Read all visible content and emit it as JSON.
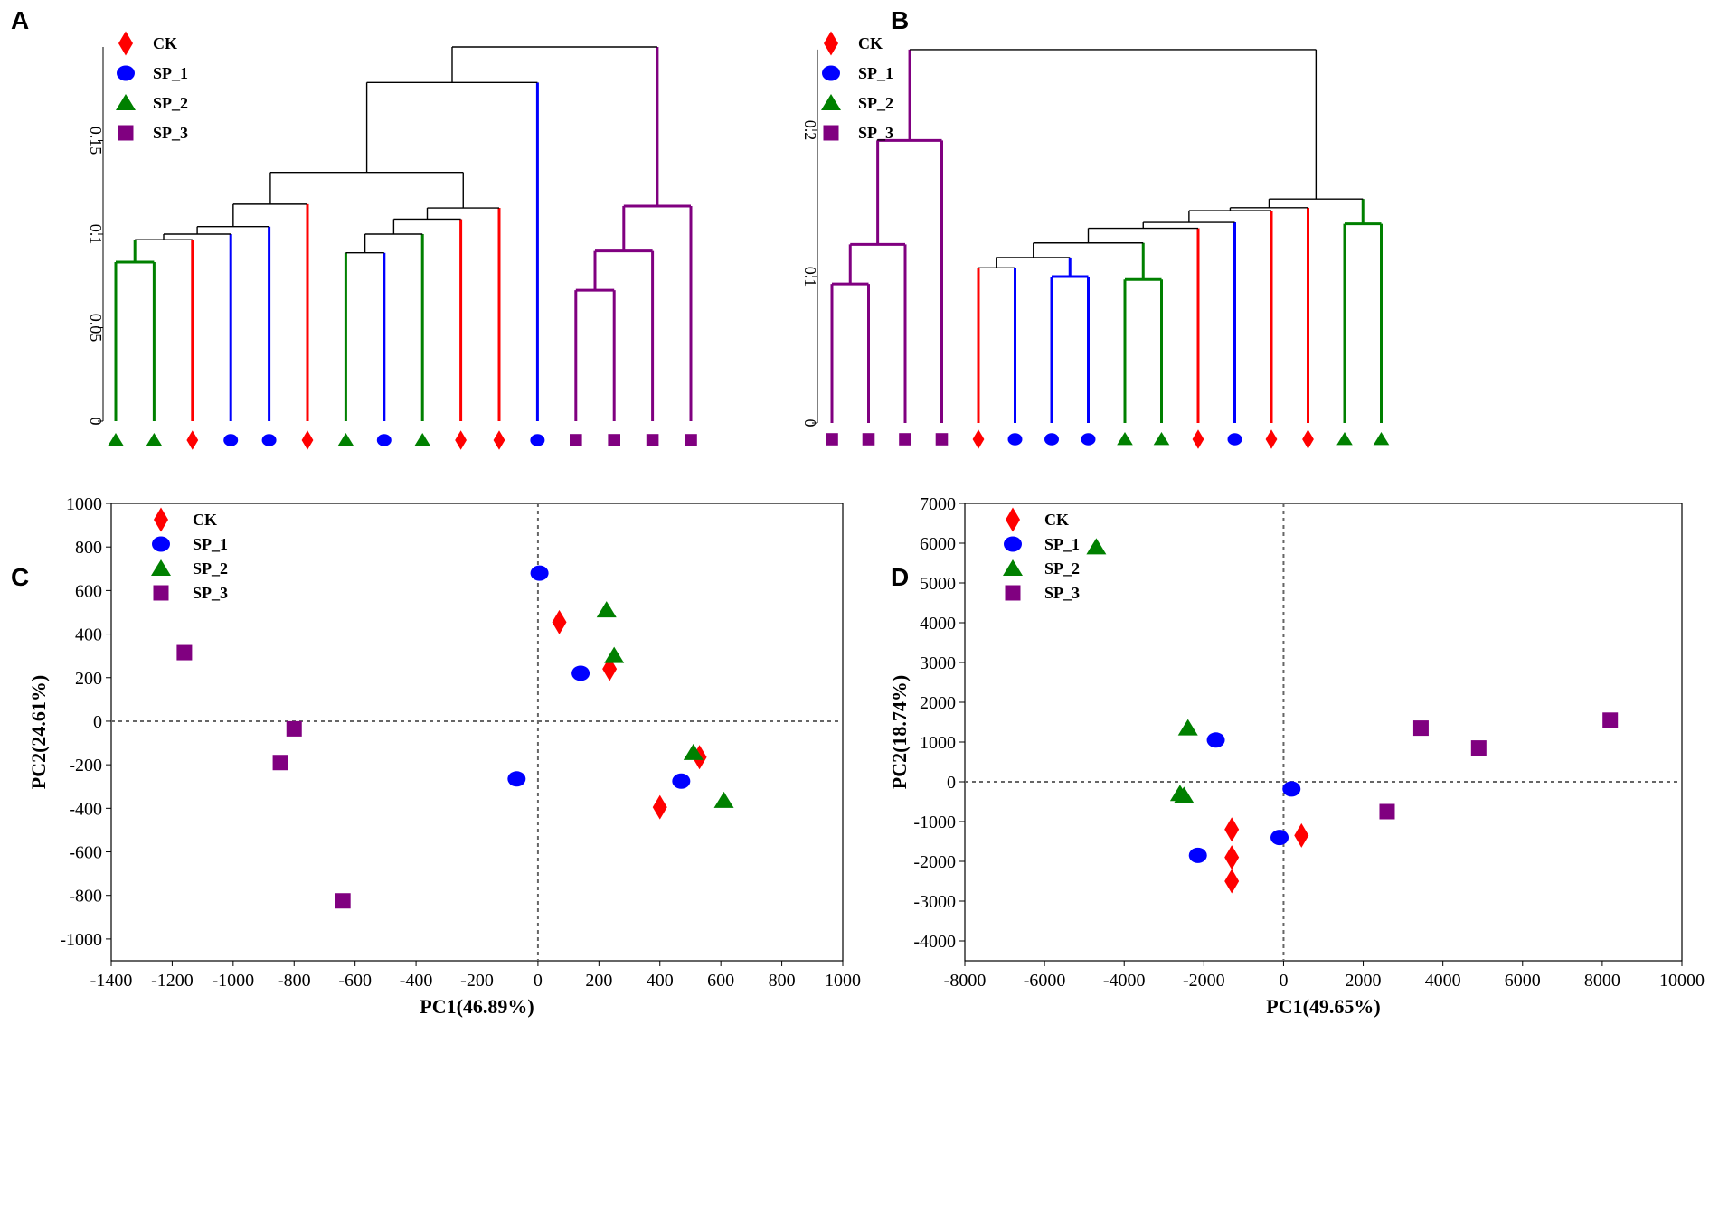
{
  "colors": {
    "CK": "#ff0000",
    "SP_1": "#0000ff",
    "SP_2": "#008000",
    "SP_3": "#800080",
    "connector": "#000000"
  },
  "legend": [
    {
      "key": "CK",
      "label": "CK",
      "shape": "diamond"
    },
    {
      "key": "SP_1",
      "label": "SP_1",
      "shape": "circle"
    },
    {
      "key": "SP_2",
      "label": "SP_2",
      "shape": "triangle"
    },
    {
      "key": "SP_3",
      "label": "SP_3",
      "shape": "square"
    }
  ],
  "chart_data": [
    {
      "panel": "A",
      "type": "dendrogram",
      "y_ticks": [
        {
          "value": 0,
          "label": "0"
        },
        {
          "value": 0.05,
          "label": "0.05"
        },
        {
          "value": 0.1,
          "label": "0.1"
        },
        {
          "value": 0.15,
          "label": "0.15"
        }
      ],
      "ylim": [
        0,
        0.2
      ],
      "leaf_groups": [
        "SP_2",
        "SP_2",
        "CK",
        "SP_1",
        "SP_1",
        "CK",
        "SP_2",
        "SP_1",
        "SP_2",
        "CK",
        "CK",
        "SP_1",
        "SP_3",
        "SP_3",
        "SP_3",
        "SP_3"
      ],
      "links": [
        [
          0,
          1,
          0.085,
          "SP_2"
        ],
        [
          16,
          2,
          0.097,
          "mixed"
        ],
        [
          17,
          3,
          0.1,
          "mixed"
        ],
        [
          18,
          4,
          0.104,
          "mixed"
        ],
        [
          19,
          5,
          0.116,
          "mixed"
        ],
        [
          6,
          7,
          0.09,
          "mixed"
        ],
        [
          21,
          8,
          0.1,
          "mixed"
        ],
        [
          22,
          9,
          0.108,
          "mixed"
        ],
        [
          23,
          10,
          0.114,
          "mixed"
        ],
        [
          20,
          24,
          0.133,
          "mixed"
        ],
        [
          25,
          11,
          0.181,
          "mixed"
        ],
        [
          12,
          13,
          0.07,
          "SP_3"
        ],
        [
          27,
          14,
          0.091,
          "SP_3"
        ],
        [
          28,
          15,
          0.115,
          "SP_3"
        ],
        [
          26,
          29,
          0.2,
          "mixed"
        ]
      ]
    },
    {
      "panel": "B",
      "type": "dendrogram",
      "y_ticks": [
        {
          "value": 0,
          "label": "0"
        },
        {
          "value": 0.1,
          "label": "0.1"
        },
        {
          "value": 0.2,
          "label": "0.2"
        }
      ],
      "ylim": [
        0,
        0.255
      ],
      "leaf_groups": [
        "SP_3",
        "SP_3",
        "SP_3",
        "SP_3",
        "CK",
        "SP_1",
        "SP_1",
        "SP_1",
        "SP_2",
        "SP_2",
        "CK",
        "SP_1",
        "CK",
        "CK",
        "SP_2",
        "SP_2"
      ],
      "links": [
        [
          0,
          1,
          0.095,
          "SP_3"
        ],
        [
          16,
          2,
          0.122,
          "SP_3"
        ],
        [
          17,
          3,
          0.193,
          "SP_3"
        ],
        [
          4,
          5,
          0.106,
          "mixed"
        ],
        [
          6,
          7,
          0.1,
          "SP_1"
        ],
        [
          19,
          20,
          0.113,
          "mixed"
        ],
        [
          8,
          9,
          0.098,
          "SP_2"
        ],
        [
          21,
          22,
          0.123,
          "mixed"
        ],
        [
          23,
          10,
          0.133,
          "mixed"
        ],
        [
          24,
          11,
          0.137,
          "mixed"
        ],
        [
          25,
          12,
          0.145,
          "mixed"
        ],
        [
          26,
          13,
          0.147,
          "mixed"
        ],
        [
          14,
          15,
          0.136,
          "SP_2"
        ],
        [
          27,
          28,
          0.153,
          "mixed"
        ],
        [
          18,
          29,
          0.255,
          "mixed"
        ]
      ]
    },
    {
      "panel": "C",
      "type": "scatter",
      "xlabel": "PC1(46.89%)",
      "ylabel": "PC2(24.61%)",
      "xlim": [
        -1400,
        1000
      ],
      "ylim": [
        -1100,
        1000
      ],
      "xticks": [
        -1400,
        -1200,
        -1000,
        -800,
        -600,
        -400,
        -200,
        0,
        200,
        400,
        600,
        800,
        1000
      ],
      "yticks": [
        -1000,
        -800,
        -600,
        -400,
        -200,
        0,
        200,
        400,
        600,
        800,
        1000
      ],
      "series": [
        {
          "name": "CK",
          "points": [
            [
              70,
              455
            ],
            [
              235,
              240
            ],
            [
              530,
              -165
            ],
            [
              400,
              -395
            ]
          ]
        },
        {
          "name": "SP_1",
          "points": [
            [
              5,
              680
            ],
            [
              140,
              220
            ],
            [
              -70,
              -265
            ],
            [
              470,
              -275
            ]
          ]
        },
        {
          "name": "SP_2",
          "points": [
            [
              225,
              510
            ],
            [
              250,
              300
            ],
            [
              510,
              -145
            ],
            [
              610,
              -365
            ]
          ]
        },
        {
          "name": "SP_3",
          "points": [
            [
              -1160,
              315
            ],
            [
              -800,
              -35
            ],
            [
              -845,
              -190
            ],
            [
              -640,
              -825
            ]
          ]
        }
      ]
    },
    {
      "panel": "D",
      "type": "scatter",
      "xlabel": "PC1(49.65%)",
      "ylabel": "PC2(18.74%)",
      "xlim": [
        -8000,
        10000
      ],
      "ylim": [
        -4500,
        7000
      ],
      "xticks": [
        -8000,
        -6000,
        -4000,
        -2000,
        0,
        2000,
        4000,
        6000,
        8000,
        10000
      ],
      "yticks": [
        -4000,
        -3000,
        -2000,
        -1000,
        0,
        1000,
        2000,
        3000,
        4000,
        5000,
        6000,
        7000
      ],
      "series": [
        {
          "name": "CK",
          "points": [
            [
              -1300,
              -1200
            ],
            [
              -1300,
              -1900
            ],
            [
              -1300,
              -2500
            ],
            [
              450,
              -1350
            ]
          ]
        },
        {
          "name": "SP_1",
          "points": [
            [
              -1700,
              1050
            ],
            [
              200,
              -180
            ],
            [
              -100,
              -1400
            ],
            [
              -2150,
              -1850
            ]
          ]
        },
        {
          "name": "SP_2",
          "points": [
            [
              -4700,
              5900
            ],
            [
              -2400,
              1350
            ],
            [
              -2600,
              -300
            ],
            [
              -2500,
              -350
            ]
          ]
        },
        {
          "name": "SP_3",
          "points": [
            [
              3450,
              1350
            ],
            [
              4900,
              850
            ],
            [
              8200,
              1550
            ],
            [
              2600,
              -750
            ]
          ]
        }
      ]
    }
  ]
}
